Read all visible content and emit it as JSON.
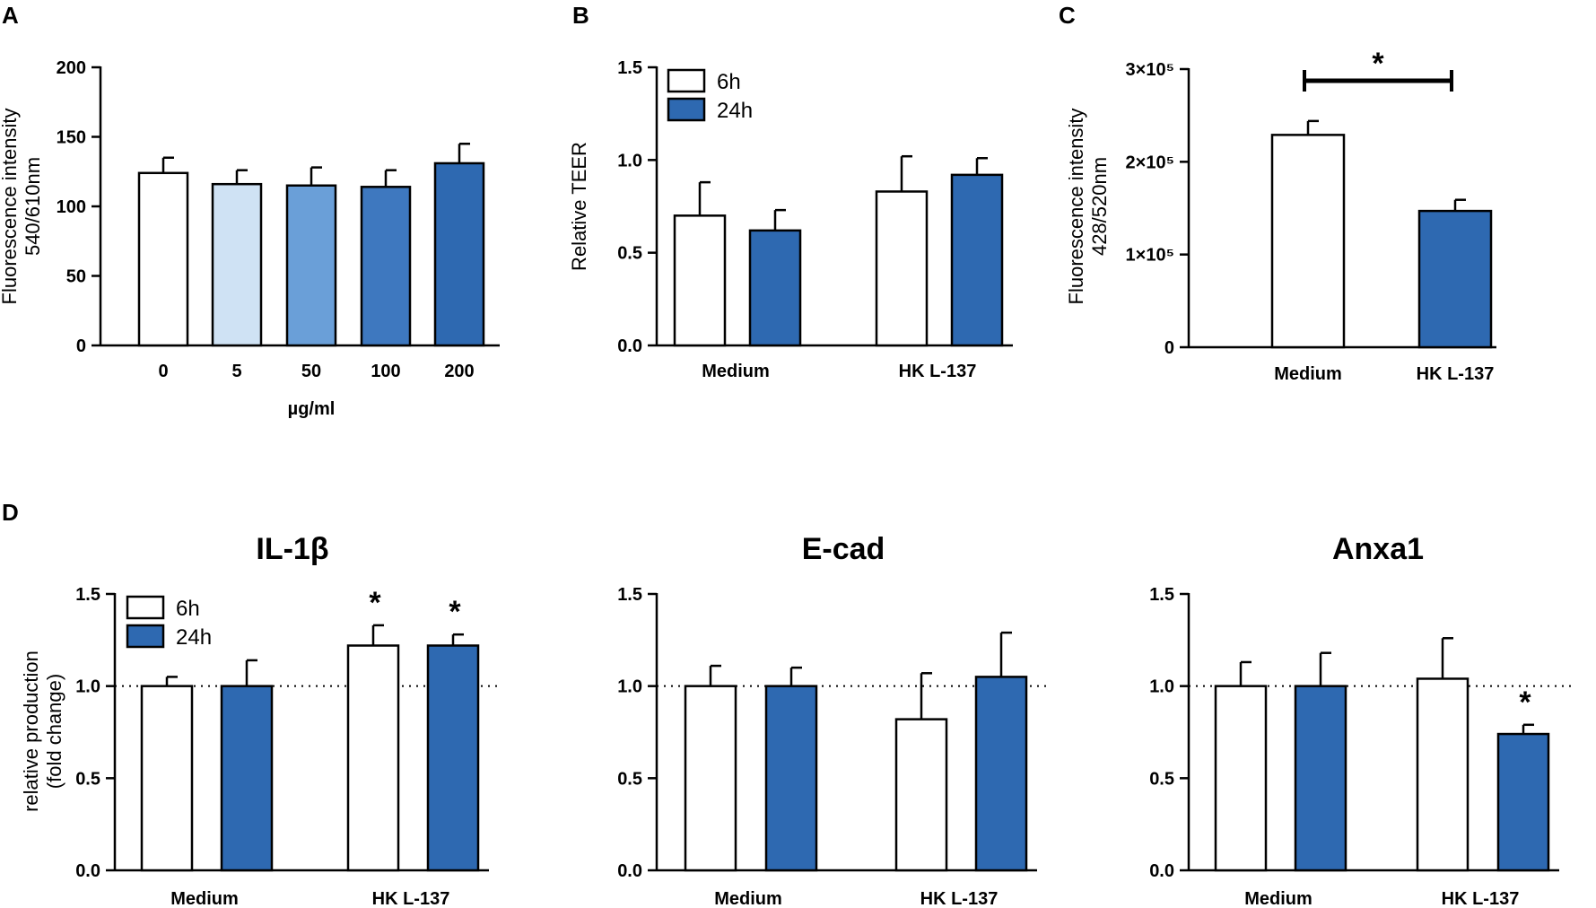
{
  "panel_letters": [
    "A",
    "B",
    "C",
    "D"
  ],
  "colors": {
    "white_bar": "#ffffff",
    "blue": "#2e69b1",
    "shade_5": "#cfe2f4",
    "shade_50": "#6a9fd8",
    "shade_100": "#3e78bf",
    "shade_200": "#2e69b1",
    "ink": "#000000"
  },
  "chart_data": [
    {
      "id": "A",
      "type": "bar",
      "title": "",
      "xlabel": "µg/ml",
      "ylabel_lines": [
        "Fluorescence intensity",
        "540/610nm"
      ],
      "ylim": [
        0,
        200
      ],
      "yticks": [
        0,
        50,
        100,
        150,
        200
      ],
      "ytick_labels": [
        "0",
        "50",
        "100",
        "150",
        "200"
      ],
      "categories": [
        "0",
        "5",
        "50",
        "100",
        "200"
      ],
      "values": [
        124,
        116,
        115,
        114,
        131
      ],
      "errors": [
        11,
        10,
        13,
        12,
        14
      ],
      "bar_colors": [
        "#ffffff",
        "#cfe2f4",
        "#6a9fd8",
        "#3e78bf",
        "#2e69b1"
      ]
    },
    {
      "id": "B",
      "type": "bar",
      "title": "",
      "xlabel": "",
      "ylabel_lines": [
        "Relative TEER"
      ],
      "ylim": [
        0,
        1.5
      ],
      "yticks": [
        0,
        0.5,
        1.0,
        1.5
      ],
      "ytick_labels": [
        "0.0",
        "0.5",
        "1.0",
        "1.5"
      ],
      "categories": [
        "Medium",
        "HK L-137"
      ],
      "series": [
        {
          "name": "6h",
          "color": "#ffffff",
          "values": [
            0.7,
            0.83
          ],
          "errors": [
            0.18,
            0.19
          ]
        },
        {
          "name": "24h",
          "color": "#2e69b1",
          "values": [
            0.62,
            0.92
          ],
          "errors": [
            0.11,
            0.09
          ]
        }
      ],
      "legend": "top-left"
    },
    {
      "id": "C",
      "type": "bar",
      "title": "",
      "xlabel": "",
      "ylabel_lines": [
        "Fluorescence intensity",
        "428/520nm"
      ],
      "ylim": [
        0,
        300000
      ],
      "yticks": [
        0,
        100000,
        200000,
        300000
      ],
      "ytick_labels": [
        "0",
        "1×10⁵",
        "2×10⁵",
        "3×10⁵"
      ],
      "categories": [
        "Medium",
        "HK L-137"
      ],
      "values": [
        229000,
        147000
      ],
      "errors": [
        15000,
        12000
      ],
      "bar_colors": [
        "#ffffff",
        "#2e69b1"
      ],
      "significance": {
        "label": "*",
        "between": [
          0,
          1
        ]
      }
    },
    {
      "id": "D1",
      "type": "bar",
      "title": "IL-1β",
      "xlabel": "",
      "ylabel_lines": [
        "relative production",
        "(fold change)"
      ],
      "ylim": [
        0,
        1.5
      ],
      "yticks": [
        0,
        0.5,
        1.0,
        1.5
      ],
      "ytick_labels": [
        "0.0",
        "0.5",
        "1.0",
        "1.5"
      ],
      "reference_line": 1.0,
      "categories": [
        "Medium",
        "HK L-137"
      ],
      "series": [
        {
          "name": "6h",
          "color": "#ffffff",
          "values": [
            1.0,
            1.22
          ],
          "errors": [
            0.05,
            0.11
          ],
          "stars": [
            "",
            "*"
          ]
        },
        {
          "name": "24h",
          "color": "#2e69b1",
          "values": [
            1.0,
            1.22
          ],
          "errors": [
            0.14,
            0.06
          ],
          "stars": [
            "",
            "*"
          ]
        }
      ],
      "legend": "top-left"
    },
    {
      "id": "D2",
      "type": "bar",
      "title": "E-cad",
      "xlabel": "",
      "ylabel_lines": [],
      "ylim": [
        0,
        1.5
      ],
      "yticks": [
        0,
        0.5,
        1.0,
        1.5
      ],
      "ytick_labels": [
        "0.0",
        "0.5",
        "1.0",
        "1.5"
      ],
      "reference_line": 1.0,
      "categories": [
        "Medium",
        "HK L-137"
      ],
      "series": [
        {
          "name": "6h",
          "color": "#ffffff",
          "values": [
            1.0,
            0.82
          ],
          "errors": [
            0.11,
            0.25
          ],
          "stars": [
            "",
            ""
          ]
        },
        {
          "name": "24h",
          "color": "#2e69b1",
          "values": [
            1.0,
            1.05
          ],
          "errors": [
            0.1,
            0.24
          ],
          "stars": [
            "",
            ""
          ]
        }
      ]
    },
    {
      "id": "D3",
      "type": "bar",
      "title": "Anxa1",
      "xlabel": "",
      "ylabel_lines": [],
      "ylim": [
        0,
        1.5
      ],
      "yticks": [
        0,
        0.5,
        1.0,
        1.5
      ],
      "ytick_labels": [
        "0.0",
        "0.5",
        "1.0",
        "1.5"
      ],
      "reference_line": 1.0,
      "categories": [
        "Medium",
        "HK L-137"
      ],
      "series": [
        {
          "name": "6h",
          "color": "#ffffff",
          "values": [
            1.0,
            1.04
          ],
          "errors": [
            0.13,
            0.22
          ],
          "stars": [
            "",
            ""
          ]
        },
        {
          "name": "24h",
          "color": "#2e69b1",
          "values": [
            1.0,
            0.74
          ],
          "errors": [
            0.18,
            0.05
          ],
          "stars": [
            "",
            "*"
          ]
        }
      ]
    }
  ]
}
